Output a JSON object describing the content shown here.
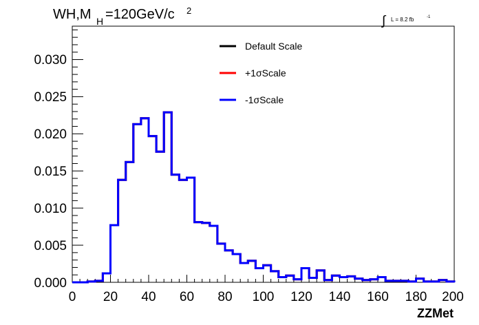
{
  "chart_data": {
    "type": "line",
    "title_main": "WH,M",
    "title_sub": "H",
    "title_rest": "=120GeV/c",
    "title_sup": "2",
    "lumi_text": "L = 8.2 fb",
    "lumi_sup": "-1",
    "xlabel": "ZZMet",
    "ylabel": "",
    "xlim": [
      0,
      200
    ],
    "ylim": [
      0,
      0.0345
    ],
    "x_ticks": [
      "0",
      "20",
      "40",
      "60",
      "80",
      "100",
      "120",
      "140",
      "160",
      "180",
      "200"
    ],
    "y_ticks": [
      "0.000",
      "0.005",
      "0.010",
      "0.015",
      "0.020",
      "0.025",
      "0.030"
    ],
    "legend_position": "top-center",
    "bin_edges": [
      0,
      4,
      8,
      12,
      16,
      20,
      24,
      28,
      32,
      36,
      40,
      44,
      48,
      52,
      56,
      60,
      64,
      68,
      72,
      76,
      80,
      84,
      88,
      92,
      96,
      100,
      104,
      108,
      112,
      116,
      120,
      124,
      128,
      132,
      136,
      140,
      144,
      148,
      152,
      156,
      160,
      164,
      168,
      172,
      176,
      180,
      184,
      188,
      192,
      196,
      200
    ],
    "series": [
      {
        "name": "Default Scale",
        "color": "#000000",
        "values": [
          0,
          0,
          0.0001,
          0.0002,
          0.0012,
          0.0077,
          0.0138,
          0.0162,
          0.0213,
          0.0221,
          0.0197,
          0.0176,
          0.0229,
          0.0145,
          0.0138,
          0.0141,
          0.0081,
          0.008,
          0.0076,
          0.0052,
          0.0043,
          0.0038,
          0.0026,
          0.0029,
          0.0019,
          0.0023,
          0.0015,
          0.0007,
          0.0009,
          0.0004,
          0.0019,
          0.0006,
          0.0016,
          0.0003,
          0.0009,
          0.0007,
          0.0008,
          0.0005,
          0.0003,
          0.0004,
          0.0007,
          0.0002,
          0.0002,
          0.0002,
          0.0001,
          0.0005,
          0.0001,
          0.0001,
          0.0003,
          0.0001
        ]
      },
      {
        "name": "+1σScale",
        "color": "#ff0000",
        "values": [
          0,
          0,
          0.0001,
          0.0002,
          0.0012,
          0.0077,
          0.0138,
          0.0162,
          0.0213,
          0.0221,
          0.0197,
          0.0176,
          0.0229,
          0.0145,
          0.0138,
          0.0141,
          0.0081,
          0.008,
          0.0076,
          0.0052,
          0.0043,
          0.0038,
          0.0026,
          0.0029,
          0.0019,
          0.0023,
          0.0015,
          0.0007,
          0.0009,
          0.0004,
          0.0019,
          0.0006,
          0.0016,
          0.0003,
          0.0009,
          0.0007,
          0.0008,
          0.0005,
          0.0003,
          0.0004,
          0.0007,
          0.0002,
          0.0002,
          0.0002,
          0.0001,
          0.0005,
          0.0001,
          0.0001,
          0.0003,
          0.0001
        ]
      },
      {
        "name": "-1σScale",
        "color": "#0000ff",
        "values": [
          0,
          0,
          0.0001,
          0.0002,
          0.0012,
          0.0077,
          0.0138,
          0.0162,
          0.0213,
          0.0221,
          0.0197,
          0.0176,
          0.0229,
          0.0145,
          0.0138,
          0.0141,
          0.0081,
          0.008,
          0.0076,
          0.0052,
          0.0043,
          0.0038,
          0.0026,
          0.0029,
          0.0019,
          0.0023,
          0.0015,
          0.0007,
          0.0009,
          0.0004,
          0.0019,
          0.0006,
          0.0016,
          0.0003,
          0.0009,
          0.0007,
          0.0008,
          0.0005,
          0.0003,
          0.0004,
          0.0007,
          0.0002,
          0.0002,
          0.0002,
          0.0001,
          0.0005,
          0.0001,
          0.0001,
          0.0003,
          0.0001
        ]
      }
    ]
  }
}
